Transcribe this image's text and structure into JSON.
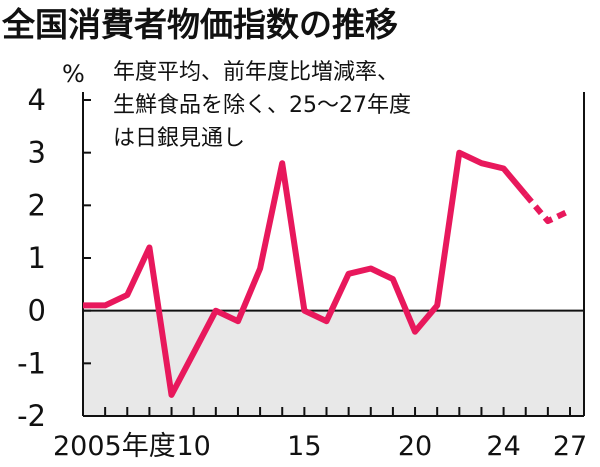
{
  "title": "全国消費者物価指数の推移",
  "note_lines": [
    "年度平均、前年度比増減率、",
    "生鮮食品を除く、25～27年度",
    "は日銀見通し"
  ],
  "colors": {
    "line": "#e8185c",
    "negative_band": "#e8e8e8",
    "axis": "#111111"
  },
  "chart_data": {
    "type": "line",
    "unit": "%",
    "ylim": [
      -2,
      4
    ],
    "yticks": [
      4,
      3,
      2,
      1,
      0,
      -1,
      -2
    ],
    "xlim": [
      2005,
      2027
    ],
    "xtick_labels": [
      {
        "x": 2005,
        "label": "2005年度"
      },
      {
        "x": 2010,
        "label": "10"
      },
      {
        "x": 2015,
        "label": "15"
      },
      {
        "x": 2020,
        "label": "20"
      },
      {
        "x": 2024,
        "label": "24"
      },
      {
        "x": 2027,
        "label": "27"
      }
    ],
    "grid": false,
    "series": [
      {
        "style": "solid",
        "x": [
          2005,
          2006,
          2007,
          2008,
          2009,
          2010,
          2011,
          2012,
          2013,
          2014,
          2015,
          2016,
          2017,
          2018,
          2019,
          2020,
          2021,
          2022,
          2023,
          2024,
          2025
        ],
        "values": [
          0.1,
          0.1,
          0.3,
          1.2,
          -1.6,
          -0.8,
          0.0,
          -0.2,
          0.8,
          2.8,
          0.0,
          -0.2,
          0.7,
          0.8,
          0.6,
          -0.4,
          0.1,
          3.0,
          2.8,
          2.7,
          2.2
        ]
      },
      {
        "style": "dashed",
        "x": [
          2025,
          2026,
          2027
        ],
        "values": [
          2.2,
          1.7,
          1.9
        ]
      }
    ]
  }
}
